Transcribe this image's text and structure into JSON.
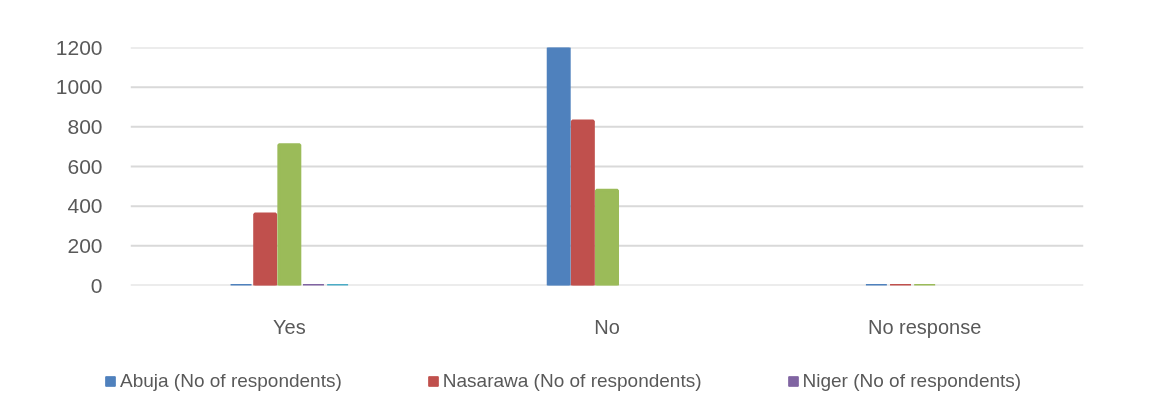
{
  "chart_data": {
    "type": "bar",
    "categories": [
      "Yes",
      "No",
      "No response"
    ],
    "series": [
      {
        "name": "Abuja (No of respondents)",
        "color": "#4f81bd",
        "values": [
          0,
          1200,
          0
        ]
      },
      {
        "name": "Nasarawa (No of respondents)",
        "color": "#c0504d",
        "values": [
          360,
          830,
          0
        ]
      },
      {
        "color": "#9bbb59",
        "values": [
          710,
          480,
          0
        ]
      },
      {
        "name": "Niger (No of respondents)",
        "color": "#8064a2",
        "values": [
          0,
          null,
          null
        ]
      },
      {
        "color": "#4bacc6",
        "values": [
          0,
          null,
          null
        ]
      }
    ],
    "ylim": [
      0,
      1200
    ],
    "yticks": [
      0,
      200,
      400,
      600,
      800,
      1000,
      1200
    ],
    "grid": "y",
    "legend": "bottom"
  }
}
